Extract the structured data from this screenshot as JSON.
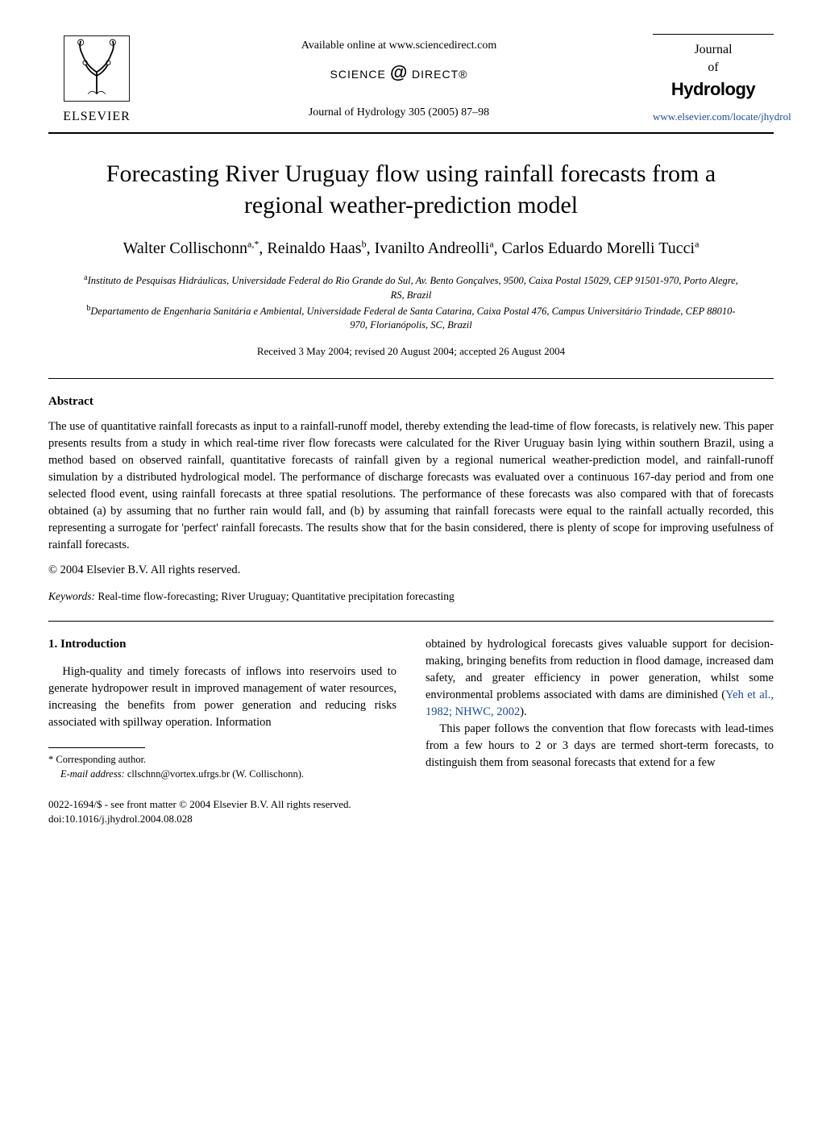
{
  "header": {
    "available_online": "Available online at www.sciencedirect.com",
    "science_direct": "SCIENCE",
    "science_direct2": "DIRECT®",
    "journal_ref": "Journal of Hydrology 305 (2005) 87–98",
    "publisher": "ELSEVIER",
    "journal_badge": {
      "line1": "Journal",
      "line2": "of",
      "line3": "Hydrology"
    },
    "weblink": "www.elsevier.com/locate/jhydrol"
  },
  "article": {
    "title": "Forecasting River Uruguay flow using rainfall forecasts from a regional weather-prediction model",
    "authors_html": "Walter Collischonn<sup>a,*</sup>, Reinaldo Haas<sup>b</sup>, Ivanilto Andreolli<sup>a</sup>, Carlos Eduardo Morelli Tucci<sup>a</sup>",
    "affiliations": {
      "a": "Instituto de Pesquisas Hidráulicas, Universidade Federal do Rio Grande do Sul, Av. Bento Gonçalves, 9500, Caixa Postal 15029, CEP 91501-970, Porto Alegre, RS, Brazil",
      "b": "Departamento de Engenharia Sanitária e Ambiental, Universidade Federal de Santa Catarina, Caixa Postal 476, Campus Universitário Trindade, CEP 88010-970, Florianópolis, SC, Brazil"
    },
    "received": "Received 3 May 2004; revised 20 August 2004; accepted 26 August 2004"
  },
  "abstract": {
    "heading": "Abstract",
    "body": "The use of quantitative rainfall forecasts as input to a rainfall-runoff model, thereby extending the lead-time of flow forecasts, is relatively new. This paper presents results from a study in which real-time river flow forecasts were calculated for the River Uruguay basin lying within southern Brazil, using a method based on observed rainfall, quantitative forecasts of rainfall given by a regional numerical weather-prediction model, and rainfall-runoff simulation by a distributed hydrological model. The performance of discharge forecasts was evaluated over a continuous 167-day period and from one selected flood event, using rainfall forecasts at three spatial resolutions. The performance of these forecasts was also compared with that of forecasts obtained (a) by assuming that no further rain would fall, and (b) by assuming that rainfall forecasts were equal to the rainfall actually recorded, this representing a surrogate for 'perfect' rainfall forecasts. The results show that for the basin considered, there is plenty of scope for improving usefulness of rainfall forecasts.",
    "copyright": "© 2004 Elsevier B.V. All rights reserved.",
    "keywords_label": "Keywords:",
    "keywords": "Real-time flow-forecasting; River Uruguay; Quantitative precipitation forecasting"
  },
  "section1": {
    "heading": "1. Introduction",
    "col_left_paras": [
      "High-quality and timely forecasts of inflows into reservoirs used to generate hydropower result in improved management of water resources, increasing the benefits from power generation and reducing risks associated with spillway operation. Information"
    ],
    "col_right_paras": [
      "obtained by hydrological forecasts gives valuable support for decision-making, bringing benefits from reduction in flood damage, increased dam safety, and greater efficiency in power generation, whilst some environmental problems associated with dams are diminished (",
      "This paper follows the convention that flow forecasts with lead-times from a few hours to 2 or 3 days are termed short-term forecasts, to distinguish them from seasonal forecasts that extend for a few"
    ],
    "citation_text": "Yeh et al., 1982; NHWC, 2002",
    "citation_suffix": ")."
  },
  "footnotes": {
    "corresponding": "* Corresponding author.",
    "email_label": "E-mail address:",
    "email": "cllschnn@vortex.ufrgs.br (W. Collischonn)."
  },
  "bottom": {
    "issn_line": "0022-1694/$ - see front matter © 2004 Elsevier B.V. All rights reserved.",
    "doi_line": "doi:10.1016/j.jhydrol.2004.08.028"
  },
  "colors": {
    "text": "#000000",
    "background": "#ffffff",
    "link": "#1a4a9c"
  }
}
